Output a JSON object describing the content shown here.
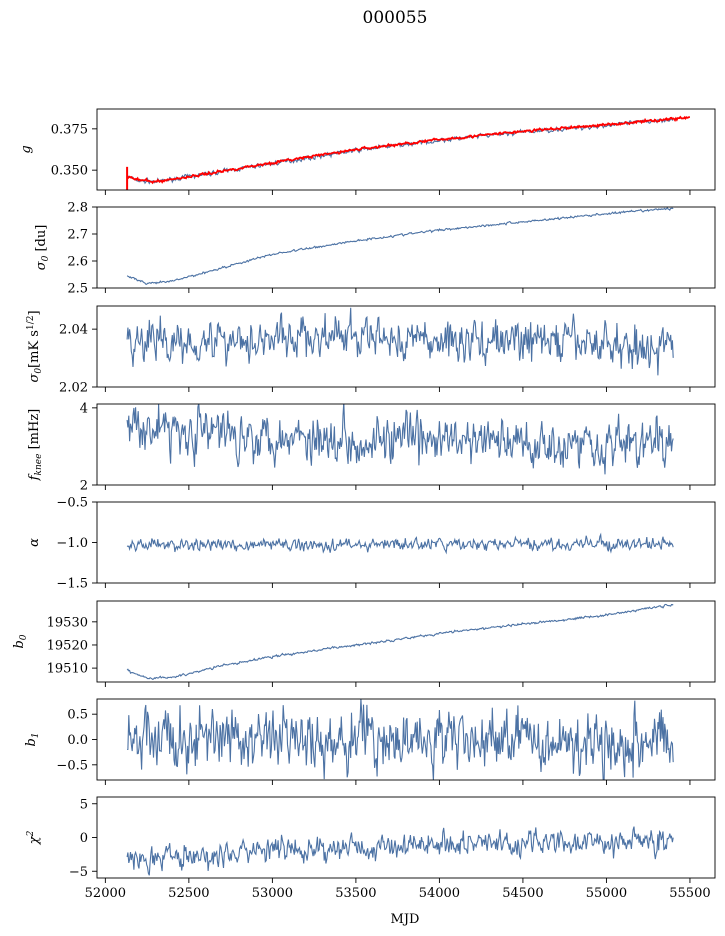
{
  "figure": {
    "title": "000055",
    "xlabel": "MJD",
    "xlim": [
      51950,
      55650
    ],
    "xticks": [
      52000,
      52500,
      53000,
      53500,
      54000,
      54500,
      55000,
      55500
    ],
    "x_start": 52130,
    "x_end": 55400,
    "colors": {
      "series": "#4c72a4",
      "fit": "#ff0000"
    }
  },
  "chart_data": [
    {
      "type": "line",
      "ylabel": "g",
      "ylim": [
        0.338,
        0.387
      ],
      "yticks": [
        0.35,
        0.375
      ],
      "ytick_labels": [
        "0.350",
        "0.375"
      ],
      "noise": 0.0006,
      "series": [
        {
          "color": "#4c72a4",
          "x": [
            52130,
            52200,
            52300,
            52500,
            53000,
            53500,
            54000,
            54500,
            55000,
            55400
          ],
          "values": [
            0.346,
            0.3435,
            0.343,
            0.346,
            0.354,
            0.362,
            0.368,
            0.373,
            0.377,
            0.381
          ]
        },
        {
          "color": "#ff0000",
          "x": [
            52130,
            52200,
            52300,
            52500,
            53000,
            53500,
            54000,
            54500,
            55000,
            55500
          ],
          "values": [
            0.346,
            0.344,
            0.343,
            0.346,
            0.3545,
            0.3625,
            0.3685,
            0.3735,
            0.3775,
            0.382
          ]
        }
      ]
    },
    {
      "type": "line",
      "ylabel": "σ0 [du]",
      "ylim": [
        2.5,
        2.8
      ],
      "yticks": [
        2.5,
        2.6,
        2.7,
        2.8
      ],
      "ytick_labels": [
        "2.5",
        "2.6",
        "2.7",
        "2.8"
      ],
      "noise": 0.002,
      "series": [
        {
          "color": "#4c72a4",
          "x": [
            52130,
            52250,
            52400,
            52700,
            53000,
            53500,
            54000,
            54500,
            55000,
            55400
          ],
          "values": [
            2.545,
            2.515,
            2.525,
            2.575,
            2.625,
            2.675,
            2.715,
            2.745,
            2.775,
            2.795
          ]
        }
      ]
    },
    {
      "type": "line",
      "ylabel": "σ0[mK s^1/2]",
      "ylim": [
        2.02,
        2.048
      ],
      "yticks": [
        2.02,
        2.04
      ],
      "ytick_labels": [
        "2.02",
        "2.04"
      ],
      "noise": 0.0035,
      "series": [
        {
          "color": "#4c72a4",
          "x": [
            52130,
            52500,
            53000,
            53500,
            54000,
            54500,
            55000,
            55400
          ],
          "values": [
            2.036,
            2.036,
            2.037,
            2.037,
            2.036,
            2.036,
            2.035,
            2.033
          ]
        }
      ]
    },
    {
      "type": "line",
      "ylabel": "fknee [mHz]",
      "ylim": [
        2,
        4.1
      ],
      "yticks": [
        2,
        4
      ],
      "ytick_labels": [
        "2",
        "4"
      ],
      "noise": 0.3,
      "series": [
        {
          "color": "#4c72a4",
          "x": [
            52130,
            52500,
            53000,
            53500,
            54000,
            54500,
            55000,
            55400
          ],
          "values": [
            3.6,
            3.4,
            3.3,
            3.2,
            3.15,
            3.1,
            3.1,
            3.05
          ]
        }
      ]
    },
    {
      "type": "line",
      "ylabel": "α",
      "ylim": [
        -1.5,
        -0.5
      ],
      "yticks": [
        -1.5,
        -1.0,
        -0.5
      ],
      "ytick_labels": [
        "−1.5",
        "−1.0",
        "−0.5"
      ],
      "noise": 0.035,
      "series": [
        {
          "color": "#4c72a4",
          "x": [
            52130,
            55400
          ],
          "values": [
            -1.03,
            -1.02
          ]
        }
      ]
    },
    {
      "type": "line",
      "ylabel": "b0",
      "ylim": [
        19504,
        19539
      ],
      "yticks": [
        19510,
        19520,
        19530
      ],
      "ytick_labels": [
        "19510",
        "19520",
        "19530"
      ],
      "noise": 0.25,
      "series": [
        {
          "color": "#4c72a4",
          "x": [
            52130,
            52250,
            52400,
            52700,
            53000,
            53500,
            54000,
            54500,
            55000,
            55400
          ],
          "values": [
            19509,
            19505.5,
            19506,
            19511,
            19515,
            19520,
            19525,
            19529,
            19533,
            19537.5
          ]
        }
      ]
    },
    {
      "type": "line",
      "ylabel": "b1",
      "ylim": [
        -0.8,
        0.8
      ],
      "yticks": [
        -0.5,
        0.0,
        0.5
      ],
      "ytick_labels": [
        "−0.5",
        "0.0",
        "0.5"
      ],
      "noise": 0.28,
      "series": [
        {
          "color": "#4c72a4",
          "x": [
            52130,
            55400
          ],
          "values": [
            0.0,
            0.0
          ]
        }
      ]
    },
    {
      "type": "line",
      "ylabel": "χ2",
      "ylim": [
        -6,
        6
      ],
      "yticks": [
        -5,
        0,
        5
      ],
      "ytick_labels": [
        "−5",
        "0",
        "5"
      ],
      "noise": 0.9,
      "series": [
        {
          "color": "#4c72a4",
          "x": [
            52130,
            52400,
            53000,
            53500,
            54000,
            54500,
            55000,
            55400
          ],
          "values": [
            -2.8,
            -3.0,
            -2.0,
            -1.5,
            -0.8,
            -0.8,
            -0.7,
            -0.5
          ]
        }
      ]
    }
  ]
}
